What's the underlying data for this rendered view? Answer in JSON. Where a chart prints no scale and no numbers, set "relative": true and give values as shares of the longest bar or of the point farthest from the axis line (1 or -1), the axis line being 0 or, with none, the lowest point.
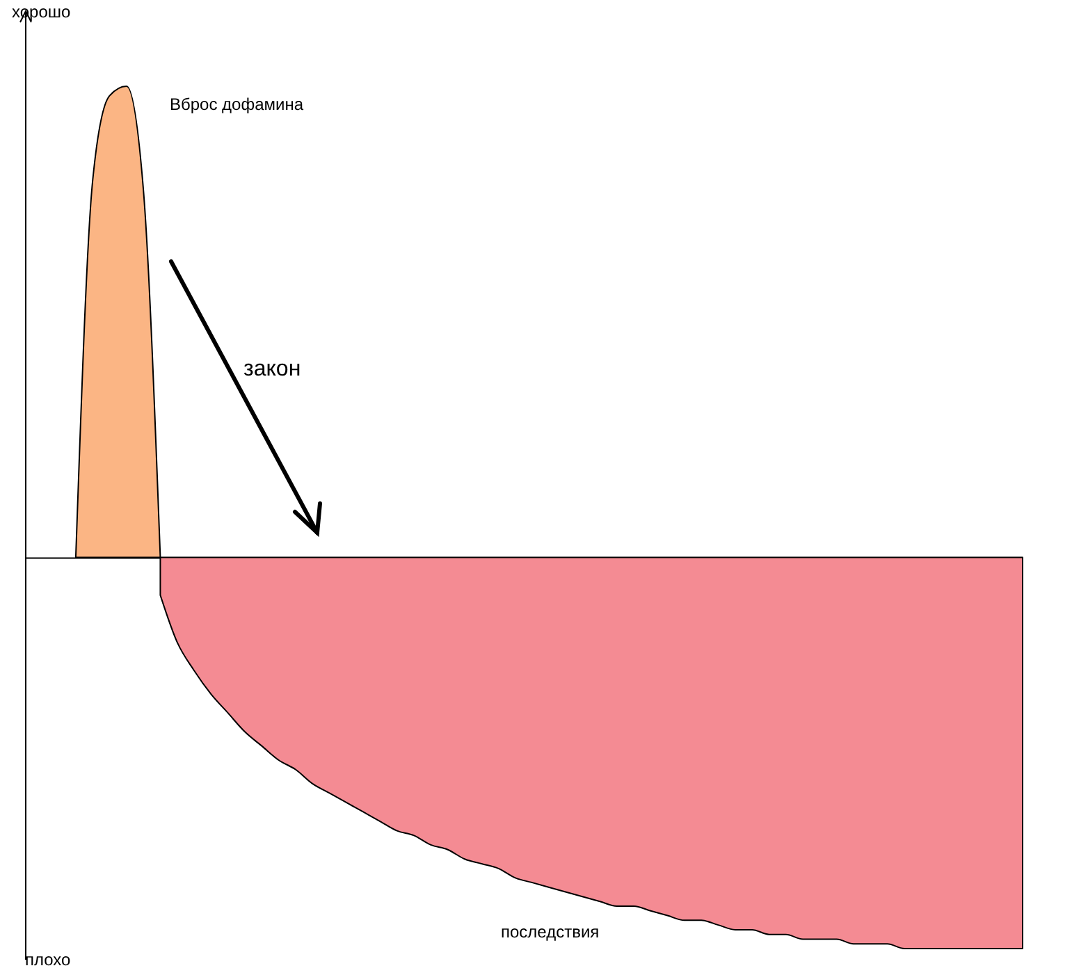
{
  "chart_data": {
    "type": "area",
    "relative": true,
    "ylabel": "хорошо",
    "annotations": [
      "плохо",
      "Вброс дофамина",
      "закон",
      "последствия"
    ],
    "categories": [
      null,
      null,
      null,
      null,
      null,
      null,
      null,
      null,
      null,
      null,
      null,
      null,
      null,
      null,
      null,
      null,
      null,
      null,
      null,
      null,
      null,
      null,
      null,
      null,
      null,
      null,
      null,
      null,
      null,
      null,
      null,
      null,
      null,
      null,
      null,
      null,
      null,
      null,
      null,
      null,
      null,
      null,
      null,
      null,
      null,
      null,
      null,
      null,
      null,
      null,
      null,
      null,
      null,
      null,
      null,
      null,
      null,
      null,
      null,
      null
    ],
    "series": [
      {
        "color": "#fbb584",
        "values": [
          null,
          null,
          null,
          0,
          0.8,
          0.98,
          1,
          0.78,
          0,
          null,
          null,
          null,
          null,
          null,
          null,
          null,
          null,
          null,
          null,
          null,
          null,
          null,
          null,
          null,
          null,
          null,
          null,
          null,
          null,
          null,
          null,
          null,
          null,
          null,
          null,
          null,
          null,
          null,
          null,
          null,
          null,
          null,
          null,
          null,
          null,
          null,
          null,
          null,
          null,
          null,
          null,
          null,
          null,
          null,
          null,
          null,
          null,
          null,
          null,
          null
        ]
      },
      {
        "color": "#f48b93",
        "values": [
          null,
          null,
          null,
          null,
          null,
          null,
          null,
          null,
          -0.08,
          -0.18,
          -0.24,
          -0.29,
          -0.33,
          -0.37,
          -0.4,
          -0.43,
          -0.45,
          -0.48,
          -0.5,
          -0.52,
          -0.54,
          -0.56,
          -0.58,
          -0.59,
          -0.61,
          -0.62,
          -0.64,
          -0.65,
          -0.66,
          -0.68,
          -0.69,
          -0.7,
          -0.71,
          -0.72,
          -0.73,
          -0.74,
          -0.74,
          -0.75,
          -0.76,
          -0.77,
          -0.77,
          -0.78,
          -0.79,
          -0.79,
          -0.8,
          -0.8,
          -0.81,
          -0.81,
          -0.81,
          -0.82,
          -0.82,
          -0.82,
          -0.83,
          -0.83,
          -0.83,
          -0.83,
          -0.83,
          -0.83,
          -0.83,
          -0.83
        ]
      }
    ]
  }
}
